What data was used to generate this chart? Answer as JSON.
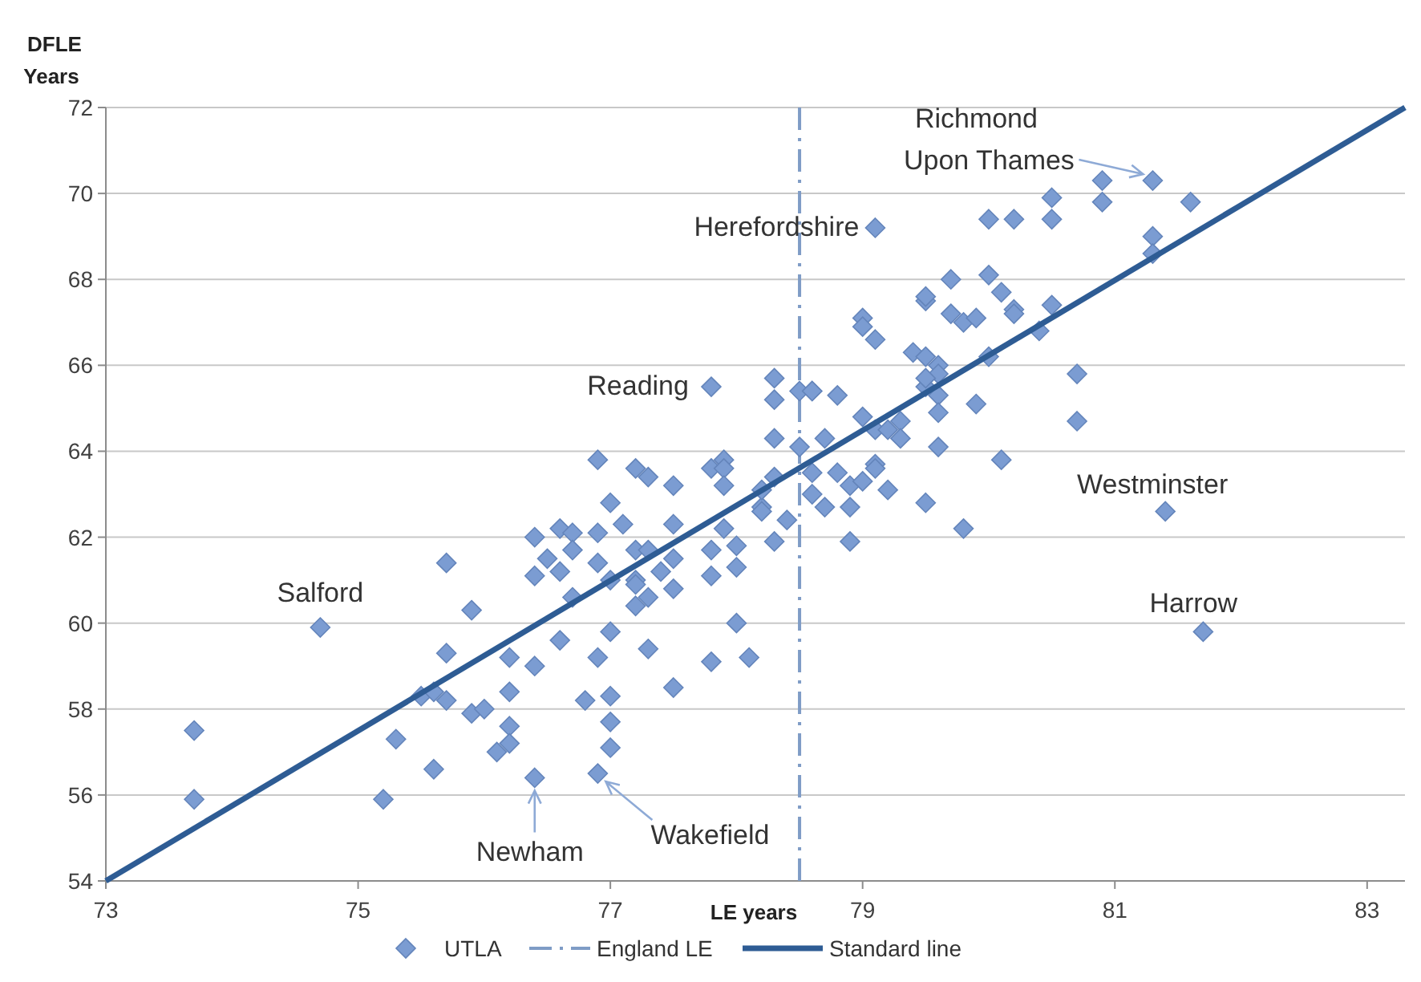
{
  "chart_data": {
    "type": "scatter",
    "xlabel": "LE years",
    "ylabel": "DFLE Years",
    "xlim": [
      73,
      83.3
    ],
    "xticks": [
      73,
      75,
      77,
      79,
      81,
      83
    ],
    "ylim": [
      54,
      72
    ],
    "yticks": [
      54,
      56,
      58,
      60,
      62,
      64,
      66,
      68,
      70,
      72
    ],
    "grid": "y",
    "legend": "bottom",
    "series": [
      {
        "name": "UTLA",
        "marker": "diamond",
        "color": "#7b9cd2",
        "x": [
          73.7,
          73.7,
          74.7,
          75.2,
          75.7,
          75.9,
          75.7,
          75.3,
          75.6,
          75.5,
          75.6,
          75.7,
          75.9,
          76.0,
          76.2,
          76.2,
          76.1,
          76.2,
          76.2,
          76.4,
          76.4,
          76.4,
          76.6,
          76.7,
          76.5,
          76.4,
          76.6,
          76.7,
          76.7,
          76.6,
          77.8,
          78.3,
          78.3,
          78.5,
          78.6,
          78.6,
          78.8,
          78.3,
          78.5,
          78.7,
          78.6,
          78.8,
          78.9,
          79.0,
          79.0,
          78.6,
          78.7,
          78.9,
          78.9,
          78.4,
          78.3,
          78.2,
          78.2,
          78.2,
          78.3,
          76.9,
          77.2,
          77.3,
          77.5,
          77.0,
          77.1,
          77.5,
          77.8,
          77.9,
          77.9,
          77.9,
          77.8,
          77.9,
          78.0,
          78.0,
          77.8,
          76.9,
          76.9,
          77.0,
          77.2,
          77.3,
          77.2,
          77.2,
          77.2,
          77.3,
          77.4,
          77.5,
          77.5,
          77.0,
          76.9,
          77.3,
          77.5,
          77.8,
          78.0,
          78.1,
          76.8,
          77.0,
          76.9,
          77.0,
          77.0,
          81.3,
          80.9,
          80.9,
          81.6,
          80.5,
          80.5,
          80.2,
          80.0,
          79.1,
          81.3,
          81.3,
          79.7,
          80.0,
          80.1,
          80.2,
          80.2,
          80.5,
          80.4,
          79.5,
          79.5,
          79.7,
          79.8,
          79.9,
          79.0,
          79.0,
          79.1,
          80.7,
          80.7,
          79.4,
          79.5,
          79.6,
          79.6,
          80.0,
          79.5,
          79.5,
          79.6,
          79.6,
          79.9,
          79.1,
          79.3,
          79.2,
          79.3,
          79.6,
          79.1,
          79.1,
          80.1,
          79.5,
          79.8,
          79.2,
          81.4,
          81.7
        ],
        "values": [
          57.5,
          55.9,
          59.9,
          55.9,
          61.4,
          60.3,
          59.3,
          57.3,
          56.6,
          58.3,
          58.4,
          58.2,
          57.9,
          58.0,
          58.4,
          57.6,
          57.0,
          57.2,
          59.2,
          59.0,
          56.4,
          62.0,
          62.2,
          62.1,
          61.5,
          61.1,
          61.2,
          61.7,
          60.6,
          59.6,
          65.5,
          65.7,
          65.2,
          65.4,
          65.4,
          65.4,
          65.3,
          64.3,
          64.1,
          64.3,
          63.5,
          63.5,
          63.2,
          63.3,
          64.8,
          63.0,
          62.7,
          62.7,
          61.9,
          62.4,
          61.9,
          62.7,
          62.6,
          63.1,
          63.4,
          63.8,
          63.6,
          63.4,
          63.2,
          62.8,
          62.3,
          62.3,
          63.6,
          63.8,
          63.6,
          63.2,
          61.7,
          62.2,
          61.8,
          61.3,
          61.1,
          62.1,
          61.4,
          61.0,
          61.7,
          61.7,
          61.0,
          60.9,
          60.4,
          60.6,
          61.2,
          60.8,
          61.5,
          59.8,
          59.2,
          59.4,
          58.5,
          59.1,
          60.0,
          59.2,
          58.2,
          58.3,
          56.5,
          57.7,
          57.1,
          70.3,
          70.3,
          69.8,
          69.8,
          69.9,
          69.4,
          69.4,
          69.4,
          69.2,
          69.0,
          68.6,
          68.0,
          68.1,
          67.7,
          67.3,
          67.2,
          67.4,
          66.8,
          67.5,
          67.6,
          67.2,
          67.0,
          67.1,
          67.1,
          66.9,
          66.6,
          65.8,
          64.7,
          66.3,
          66.2,
          66.0,
          65.8,
          66.2,
          65.5,
          65.7,
          65.3,
          64.9,
          65.1,
          64.5,
          64.7,
          64.5,
          64.3,
          64.1,
          63.7,
          63.6,
          63.8,
          62.8,
          62.2,
          63.1,
          62.6,
          59.8
        ]
      },
      {
        "name": "Standard line",
        "type": "line",
        "color": "#2e5c94",
        "line_style": "solid",
        "marker": "none",
        "x": [
          73,
          83.3
        ],
        "values": [
          54,
          72
        ]
      }
    ],
    "ref_lines": [
      {
        "axis": "x",
        "value": 78.5,
        "label": "England LE",
        "color": "#7f9cc6",
        "line_style": "dashed"
      }
    ],
    "annotations": [
      {
        "text": "Salford",
        "x": 74.7,
        "y": 59.9
      },
      {
        "text": "Reading",
        "x": 77.8,
        "y": 65.5
      },
      {
        "text": "Herefordshire",
        "x": 79.1,
        "y": 69.2
      },
      {
        "text": "Richmond Upon Thames",
        "x": 81.3,
        "y": 70.3
      },
      {
        "text": "Westminster",
        "x": 81.4,
        "y": 62.6
      },
      {
        "text": "Harrow",
        "x": 81.7,
        "y": 59.8
      },
      {
        "text": "Newham",
        "x": 76.4,
        "y": 56.4
      },
      {
        "text": "Wakefield",
        "x": 76.9,
        "y": 56.5
      }
    ]
  }
}
